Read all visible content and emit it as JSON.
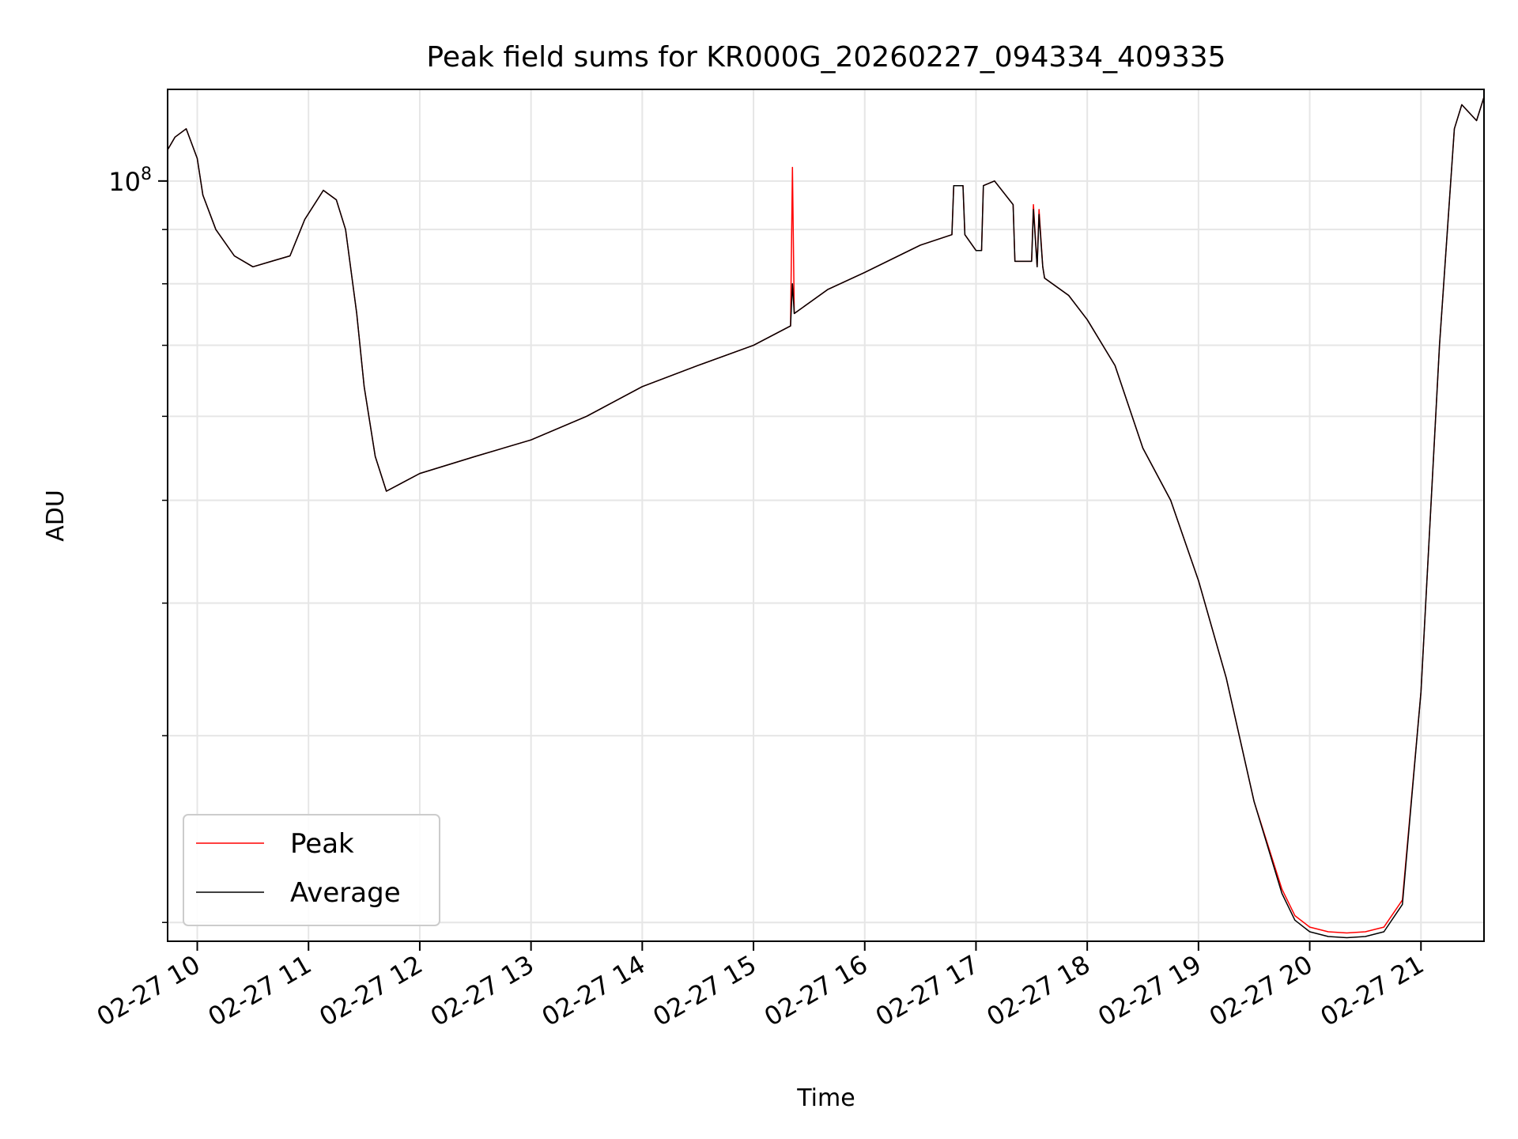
{
  "chart_data": {
    "type": "line",
    "title": "Peak field sums for KR000G_20260227_094334_409335",
    "xlabel": "Time",
    "ylabel": "ADU",
    "y_scale": "log",
    "ylim": [
      19200000,
      122000000
    ],
    "xlim": [
      "2026-02-27 09:44",
      "2026-02-27 21:34"
    ],
    "x_tick_labels": [
      "02-27 10",
      "02-27 11",
      "02-27 12",
      "02-27 13",
      "02-27 14",
      "02-27 15",
      "02-27 16",
      "02-27 17",
      "02-27 18",
      "02-27 19",
      "02-27 20",
      "02-27 21"
    ],
    "x_tick_times": [
      "2026-02-27 10:00",
      "2026-02-27 11:00",
      "2026-02-27 12:00",
      "2026-02-27 13:00",
      "2026-02-27 14:00",
      "2026-02-27 15:00",
      "2026-02-27 16:00",
      "2026-02-27 17:00",
      "2026-02-27 18:00",
      "2026-02-27 19:00",
      "2026-02-27 20:00",
      "2026-02-27 21:00"
    ],
    "y_major_tick": {
      "value": 100000000,
      "base": "10",
      "exponent": "8"
    },
    "y_minor_ticks": [
      20000000,
      30000000,
      40000000,
      50000000,
      60000000,
      70000000,
      80000000,
      90000000,
      100000000
    ],
    "grid": true,
    "legend_position": "lower-left",
    "series": [
      {
        "name": "Peak",
        "color": "#ff0000",
        "x": [
          "2026-02-27 09:44",
          "2026-02-27 09:48",
          "2026-02-27 09:54",
          "2026-02-27 10:00",
          "2026-02-27 10:03",
          "2026-02-27 10:10",
          "2026-02-27 10:20",
          "2026-02-27 10:30",
          "2026-02-27 10:40",
          "2026-02-27 10:50",
          "2026-02-27 10:58",
          "2026-02-27 11:08",
          "2026-02-27 11:15",
          "2026-02-27 11:20",
          "2026-02-27 11:26",
          "2026-02-27 11:30",
          "2026-02-27 11:36",
          "2026-02-27 11:42",
          "2026-02-27 12:00",
          "2026-02-27 12:30",
          "2026-02-27 13:00",
          "2026-02-27 13:30",
          "2026-02-27 14:00",
          "2026-02-27 14:30",
          "2026-02-27 15:00",
          "2026-02-27 15:20",
          "2026-02-27 15:21",
          "2026-02-27 15:22",
          "2026-02-27 15:40",
          "2026-02-27 16:00",
          "2026-02-27 16:30",
          "2026-02-27 16:47",
          "2026-02-27 16:48",
          "2026-02-27 16:53",
          "2026-02-27 16:54",
          "2026-02-27 17:00",
          "2026-02-27 17:03",
          "2026-02-27 17:04",
          "2026-02-27 17:10",
          "2026-02-27 17:20",
          "2026-02-27 17:21",
          "2026-02-27 17:30",
          "2026-02-27 17:31",
          "2026-02-27 17:33",
          "2026-02-27 17:34",
          "2026-02-27 17:36",
          "2026-02-27 17:37",
          "2026-02-27 17:50",
          "2026-02-27 18:00",
          "2026-02-27 18:15",
          "2026-02-27 18:30",
          "2026-02-27 18:45",
          "2026-02-27 19:00",
          "2026-02-27 19:15",
          "2026-02-27 19:30",
          "2026-02-27 19:45",
          "2026-02-27 19:52",
          "2026-02-27 20:00",
          "2026-02-27 20:10",
          "2026-02-27 20:20",
          "2026-02-27 20:30",
          "2026-02-27 20:40",
          "2026-02-27 20:50",
          "2026-02-27 21:00",
          "2026-02-27 21:10",
          "2026-02-27 21:18",
          "2026-02-27 21:22",
          "2026-02-27 21:26",
          "2026-02-27 21:30",
          "2026-02-27 21:34"
        ],
        "values": [
          107000000,
          110000000,
          112000000,
          105000000,
          97000000,
          90000000,
          85000000,
          83000000,
          84000000,
          85000000,
          92000000,
          98000000,
          96000000,
          90000000,
          75000000,
          64000000,
          55000000,
          51000000,
          53000000,
          55000000,
          57000000,
          60000000,
          64000000,
          67000000,
          70000000,
          73000000,
          103000000,
          75000000,
          79000000,
          82000000,
          87000000,
          89000000,
          99000000,
          99000000,
          89000000,
          86000000,
          86000000,
          99000000,
          100000000,
          95000000,
          84000000,
          84000000,
          95000000,
          83000000,
          94000000,
          83000000,
          81000000,
          78000000,
          74000000,
          67000000,
          56000000,
          50000000,
          42000000,
          34000000,
          26000000,
          21500000,
          20300000,
          19800000,
          19600000,
          19550000,
          19600000,
          19800000,
          21000000,
          33000000,
          70000000,
          112000000,
          118000000,
          116000000,
          114000000,
          120000000
        ]
      },
      {
        "name": "Average",
        "color": "#000000",
        "x": [
          "2026-02-27 09:44",
          "2026-02-27 09:48",
          "2026-02-27 09:54",
          "2026-02-27 10:00",
          "2026-02-27 10:03",
          "2026-02-27 10:10",
          "2026-02-27 10:20",
          "2026-02-27 10:30",
          "2026-02-27 10:40",
          "2026-02-27 10:50",
          "2026-02-27 10:58",
          "2026-02-27 11:08",
          "2026-02-27 11:15",
          "2026-02-27 11:20",
          "2026-02-27 11:26",
          "2026-02-27 11:30",
          "2026-02-27 11:36",
          "2026-02-27 11:42",
          "2026-02-27 12:00",
          "2026-02-27 12:30",
          "2026-02-27 13:00",
          "2026-02-27 13:30",
          "2026-02-27 14:00",
          "2026-02-27 14:30",
          "2026-02-27 15:00",
          "2026-02-27 15:20",
          "2026-02-27 15:21",
          "2026-02-27 15:22",
          "2026-02-27 15:40",
          "2026-02-27 16:00",
          "2026-02-27 16:30",
          "2026-02-27 16:47",
          "2026-02-27 16:48",
          "2026-02-27 16:53",
          "2026-02-27 16:54",
          "2026-02-27 17:00",
          "2026-02-27 17:03",
          "2026-02-27 17:04",
          "2026-02-27 17:10",
          "2026-02-27 17:20",
          "2026-02-27 17:21",
          "2026-02-27 17:30",
          "2026-02-27 17:31",
          "2026-02-27 17:33",
          "2026-02-27 17:34",
          "2026-02-27 17:36",
          "2026-02-27 17:37",
          "2026-02-27 17:50",
          "2026-02-27 18:00",
          "2026-02-27 18:15",
          "2026-02-27 18:30",
          "2026-02-27 18:45",
          "2026-02-27 19:00",
          "2026-02-27 19:15",
          "2026-02-27 19:30",
          "2026-02-27 19:45",
          "2026-02-27 19:52",
          "2026-02-27 20:00",
          "2026-02-27 20:10",
          "2026-02-27 20:20",
          "2026-02-27 20:30",
          "2026-02-27 20:40",
          "2026-02-27 20:50",
          "2026-02-27 21:00",
          "2026-02-27 21:10",
          "2026-02-27 21:18",
          "2026-02-27 21:22",
          "2026-02-27 21:26",
          "2026-02-27 21:30",
          "2026-02-27 21:34"
        ],
        "values": [
          107000000,
          110000000,
          112000000,
          105000000,
          97000000,
          90000000,
          85000000,
          83000000,
          84000000,
          85000000,
          92000000,
          98000000,
          96000000,
          90000000,
          75000000,
          64000000,
          55000000,
          51000000,
          53000000,
          55000000,
          57000000,
          60000000,
          64000000,
          67000000,
          70000000,
          73000000,
          80000000,
          75000000,
          79000000,
          82000000,
          87000000,
          89000000,
          99000000,
          99000000,
          89000000,
          86000000,
          86000000,
          99000000,
          100000000,
          95000000,
          84000000,
          84000000,
          94000000,
          83000000,
          93000000,
          83000000,
          81000000,
          78000000,
          74000000,
          67000000,
          56000000,
          50000000,
          42000000,
          34000000,
          26000000,
          21300000,
          20100000,
          19600000,
          19400000,
          19350000,
          19400000,
          19600000,
          20800000,
          33000000,
          70000000,
          112000000,
          118000000,
          116000000,
          114000000,
          120000000
        ]
      }
    ]
  }
}
